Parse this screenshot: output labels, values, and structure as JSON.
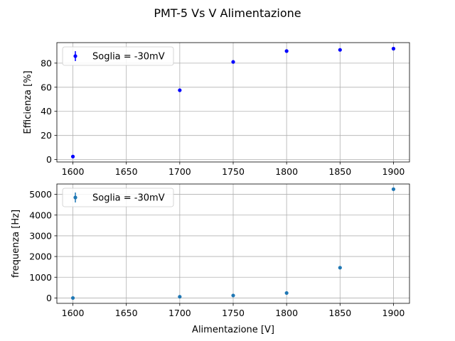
{
  "chart_data": [
    {
      "type": "scatter",
      "title": "PMT-5 Vs V Alimentazione",
      "xlabel": "",
      "ylabel": "Efficienza [%]",
      "xlim": [
        1585,
        1915
      ],
      "ylim": [
        -2,
        97
      ],
      "xticks": [
        1600,
        1650,
        1700,
        1750,
        1800,
        1850,
        1900
      ],
      "yticks": [
        0,
        20,
        40,
        60,
        80
      ],
      "grid": true,
      "legend_position": "top-left",
      "series": [
        {
          "name": "Soglia = -30mV",
          "color": "#0000ff",
          "x": [
            1600,
            1700,
            1750,
            1800,
            1850,
            1900
          ],
          "y": [
            2.5,
            57.5,
            81,
            90,
            91,
            92
          ]
        }
      ]
    },
    {
      "type": "scatter",
      "title": "",
      "xlabel": "Alimentazione [V]",
      "ylabel": "frequenza [Hz]",
      "xlim": [
        1585,
        1915
      ],
      "ylim": [
        -260,
        5500
      ],
      "xticks": [
        1600,
        1650,
        1700,
        1750,
        1800,
        1850,
        1900
      ],
      "yticks": [
        0,
        1000,
        2000,
        3000,
        4000,
        5000
      ],
      "grid": true,
      "legend_position": "top-left",
      "series": [
        {
          "name": "Soglia = -30mV",
          "color": "#1f77b4",
          "x": [
            1600,
            1700,
            1750,
            1800,
            1850,
            1900
          ],
          "y": [
            0,
            60,
            120,
            240,
            1460,
            5250
          ]
        }
      ]
    }
  ]
}
